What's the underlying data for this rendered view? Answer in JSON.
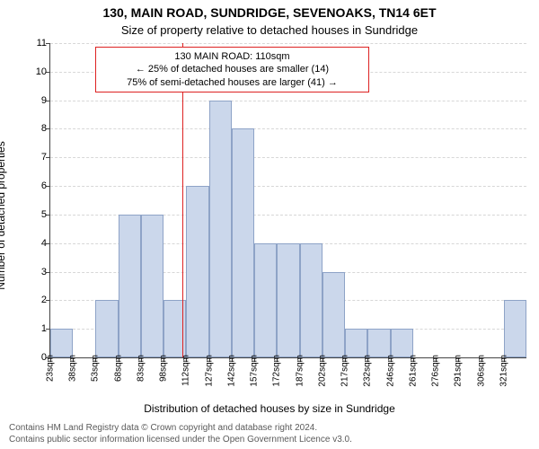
{
  "title": "130, MAIN ROAD, SUNDRIDGE, SEVENOAKS, TN14 6ET",
  "subtitle": "Size of property relative to detached houses in Sundridge",
  "ylabel": "Number of detached properties",
  "xlabel": "Distribution of detached houses by size in Sundridge",
  "footer_line1": "Contains HM Land Registry data © Crown copyright and database right 2024.",
  "footer_line2": "Contains public sector information licensed under the Open Government Licence v3.0.",
  "chart": {
    "type": "histogram",
    "y": {
      "min": 0,
      "max": 11,
      "step": 1
    },
    "bar_fill": "#cbd7eb",
    "bar_border": "#8ea3c7",
    "grid_color": "#d7d7d7",
    "axis_color": "#444444",
    "background": "#ffffff",
    "refline_value": 110,
    "refline_color": "#dd2222",
    "xticks": [
      23,
      38,
      53,
      68,
      83,
      98,
      112,
      127,
      142,
      157,
      172,
      187,
      202,
      217,
      232,
      246,
      261,
      276,
      291,
      306,
      321
    ],
    "xtick_unit": "sqm",
    "values": [
      1,
      0,
      2,
      5,
      5,
      2,
      6,
      9,
      8,
      4,
      4,
      4,
      3,
      1,
      1,
      1,
      0,
      0,
      0,
      0,
      2
    ],
    "annotation": {
      "line1": "130 MAIN ROAD: 110sqm",
      "line2": "← 25% of detached houses are smaller (14)",
      "line3": "75% of semi-detached houses are larger (41) →"
    },
    "title_fontsize": 14,
    "subtitle_fontsize": 13,
    "label_fontsize": 12,
    "tick_fontsize": 11,
    "footer_fontsize": 10
  }
}
